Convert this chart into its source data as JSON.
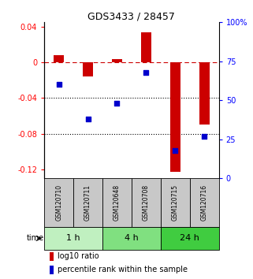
{
  "title": "GDS3433 / 28457",
  "samples": [
    "GSM120710",
    "GSM120711",
    "GSM120648",
    "GSM120708",
    "GSM120715",
    "GSM120716"
  ],
  "log10_ratio": [
    0.008,
    -0.016,
    0.004,
    0.034,
    -0.123,
    -0.07
  ],
  "percentile_rank_pct": [
    60,
    38,
    48,
    68,
    18,
    27
  ],
  "time_groups": [
    {
      "label": "1 h",
      "indices": [
        0,
        1
      ],
      "color": "#c0f0c0"
    },
    {
      "label": "4 h",
      "indices": [
        2,
        3
      ],
      "color": "#80e080"
    },
    {
      "label": "24 h",
      "indices": [
        4,
        5
      ],
      "color": "#40cc40"
    }
  ],
  "ylim_left": [
    -0.13,
    0.045
  ],
  "ylim_right": [
    0,
    100
  ],
  "yticks_left": [
    0.04,
    0.0,
    -0.04,
    -0.08,
    -0.12
  ],
  "yticks_right_vals": [
    100,
    75,
    50,
    25,
    0
  ],
  "yticks_right_labels": [
    "100%",
    "75",
    "50",
    "25",
    "0"
  ],
  "bar_color": "#cc0000",
  "point_color": "#0000cc",
  "bar_width": 0.35,
  "legend_bar_label": "log10 ratio",
  "legend_point_label": "percentile rank within the sample",
  "sample_box_color": "#c8c8c8",
  "hline_color": "#cc0000",
  "dotted_line_color": "#000000",
  "title_color": "#000000",
  "fig_width": 3.21,
  "fig_height": 3.54,
  "dpi": 100
}
